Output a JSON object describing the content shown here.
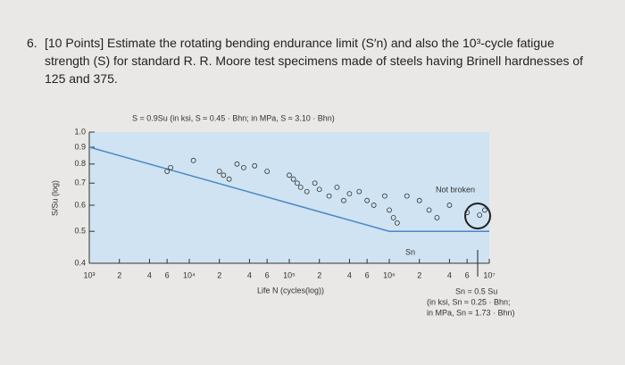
{
  "question": {
    "number": "6.",
    "lines": [
      "[10 Points] Estimate the rotating bending endurance limit (S′n) and also the 10³-cycle fatigue",
      "strength (S) for standard R. R. Moore test specimens made of steels having Brinell hardnesses of",
      "125 and 375."
    ]
  },
  "chart_data": {
    "type": "scatter",
    "annotation_top": "S = 0.9Su (in ksi, S ≈ 0.45 · Bhn; in MPa, S ≈ 3.10 · Bhn)",
    "annotation_not_broken": "Not broken",
    "annotation_sn": "Sn",
    "annotation_bottom": [
      "Sn = 0.5 Su",
      "(in ksi, Sn ≈ 0.25 · Bhn;",
      "in MPa, Sn ≈ 1.73 · Bhn)"
    ],
    "x_label": "Life N (cycles(log))",
    "y_label": "S/Su (log)",
    "log_x": true,
    "log_y": true,
    "xlim": [
      1000,
      10000000
    ],
    "ylim": [
      0.4,
      1.0
    ],
    "xticks": [
      {
        "value": 1000,
        "label": "10³"
      },
      {
        "value": 2000,
        "label": "2"
      },
      {
        "value": 4000,
        "label": "4"
      },
      {
        "value": 6000,
        "label": "6"
      },
      {
        "value": 10000,
        "label": "10⁴"
      },
      {
        "value": 20000,
        "label": "2"
      },
      {
        "value": 40000,
        "label": "4"
      },
      {
        "value": 60000,
        "label": "6"
      },
      {
        "value": 100000,
        "label": "10⁵"
      },
      {
        "value": 200000,
        "label": "2"
      },
      {
        "value": 400000,
        "label": "4"
      },
      {
        "value": 600000,
        "label": "6"
      },
      {
        "value": 1000000,
        "label": "10⁶"
      },
      {
        "value": 2000000,
        "label": "2"
      },
      {
        "value": 4000000,
        "label": "4"
      },
      {
        "value": 6000000,
        "label": "6"
      },
      {
        "value": 10000000,
        "label": "10⁷"
      }
    ],
    "yticks": [
      0.4,
      0.5,
      0.6,
      0.7,
      0.8,
      0.9,
      {
        "value": 1,
        "label": "1.0"
      }
    ],
    "curve": {
      "color": "#4a86c5",
      "x": [
        1000,
        1000000,
        10000000
      ],
      "values": [
        0.9,
        0.5,
        0.5
      ]
    },
    "points": {
      "color": "#333333",
      "x": [
        6000,
        6500,
        11000,
        20000,
        22000,
        25000,
        30000,
        35000,
        45000,
        60000,
        100000,
        110000,
        120000,
        130000,
        150000,
        180000,
        200000,
        250000,
        300000,
        350000,
        400000,
        500000,
        600000,
        700000,
        900000,
        1000000,
        1100000,
        1200000,
        1500000,
        2000000,
        2500000,
        3000000,
        4000000,
        6000000,
        8000000,
        9000000
      ],
      "values": [
        0.76,
        0.78,
        0.82,
        0.76,
        0.74,
        0.72,
        0.8,
        0.78,
        0.79,
        0.76,
        0.74,
        0.72,
        0.7,
        0.68,
        0.66,
        0.7,
        0.67,
        0.64,
        0.68,
        0.62,
        0.65,
        0.66,
        0.62,
        0.6,
        0.64,
        0.58,
        0.55,
        0.53,
        0.64,
        0.62,
        0.58,
        0.55,
        0.6,
        0.57,
        0.56,
        0.58
      ]
    }
  }
}
